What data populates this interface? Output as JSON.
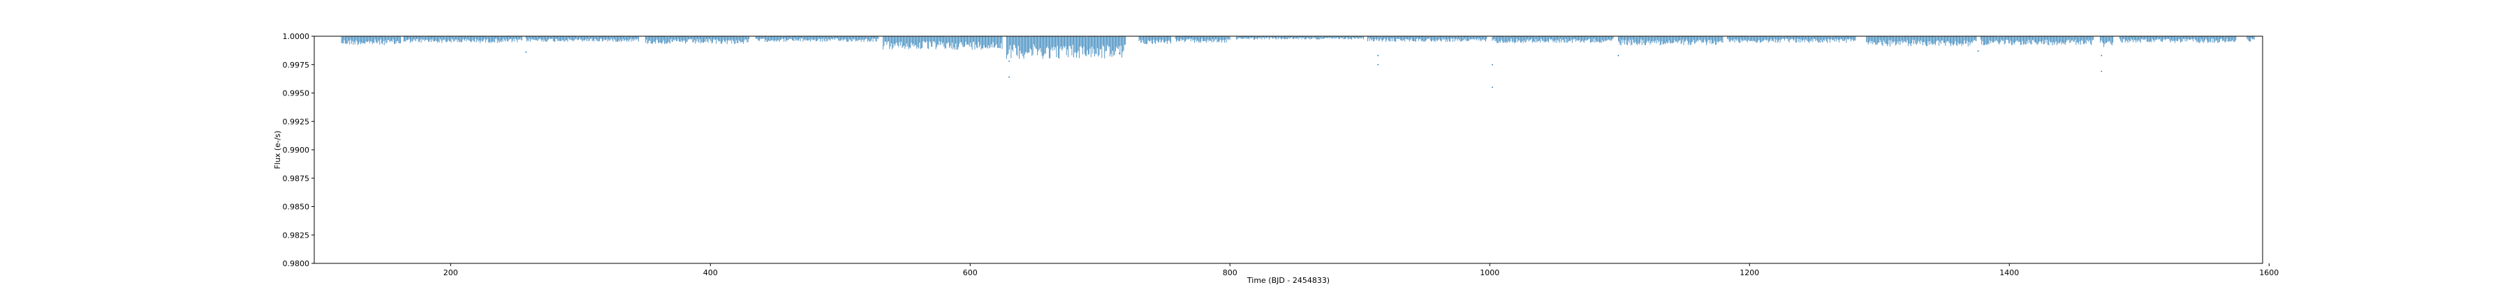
{
  "chart_data": {
    "type": "scatter",
    "title": "",
    "xlabel": "Time (BJD - 2454833)",
    "ylabel": "Flux (e-/s)",
    "xlim": [
      95,
      1595
    ],
    "ylim": [
      0.98,
      1.0
    ],
    "xticks": [
      200,
      400,
      600,
      800,
      1000,
      1200,
      1400,
      1600
    ],
    "xtick_labels": [
      "200",
      "400",
      "600",
      "800",
      "1000",
      "1200",
      "1400",
      "1600"
    ],
    "yticks": [
      0.98,
      0.9825,
      0.985,
      0.9875,
      0.99,
      0.9925,
      0.995,
      0.9975,
      1.0
    ],
    "ytick_labels": [
      "0.9800",
      "0.9825",
      "0.9850",
      "0.9875",
      "0.9900",
      "0.9925",
      "0.9950",
      "0.9975",
      "1.0000"
    ],
    "grid": false,
    "marker_color": "#1f77b4",
    "segments": [
      {
        "x_start": 116,
        "x_end": 162,
        "typical_depth": 0.0008
      },
      {
        "x_start": 164,
        "x_end": 255,
        "typical_depth": 0.0006
      },
      {
        "x_start": 258,
        "x_end": 345,
        "typical_depth": 0.0005
      },
      {
        "x_start": 350,
        "x_end": 430,
        "typical_depth": 0.0007
      },
      {
        "x_start": 435,
        "x_end": 530,
        "typical_depth": 0.0005
      },
      {
        "x_start": 533,
        "x_end": 625,
        "typical_depth": 0.0012
      },
      {
        "x_start": 628,
        "x_end": 720,
        "typical_depth": 0.002
      },
      {
        "x_start": 730,
        "x_end": 755,
        "typical_depth": 0.0007
      },
      {
        "x_start": 758,
        "x_end": 800,
        "typical_depth": 0.0006
      },
      {
        "x_start": 805,
        "x_end": 903,
        "typical_depth": 0.0003
      },
      {
        "x_start": 906,
        "x_end": 998,
        "typical_depth": 0.0005
      },
      {
        "x_start": 1002,
        "x_end": 1095,
        "typical_depth": 0.0006
      },
      {
        "x_start": 1099,
        "x_end": 1180,
        "typical_depth": 0.0008
      },
      {
        "x_start": 1183,
        "x_end": 1282,
        "typical_depth": 0.0006
      },
      {
        "x_start": 1290,
        "x_end": 1375,
        "typical_depth": 0.0009
      },
      {
        "x_start": 1378,
        "x_end": 1465,
        "typical_depth": 0.0008
      },
      {
        "x_start": 1470,
        "x_end": 1480,
        "typical_depth": 0.001
      },
      {
        "x_start": 1485,
        "x_end": 1575,
        "typical_depth": 0.0006
      },
      {
        "x_start": 1583,
        "x_end": 1589,
        "typical_depth": 0.0005
      }
    ],
    "outliers": [
      {
        "x": 258,
        "y": 0.9986
      },
      {
        "x": 630,
        "y": 0.9978
      },
      {
        "x": 630,
        "y": 0.9964
      },
      {
        "x": 715,
        "y": 0.9985
      },
      {
        "x": 914,
        "y": 0.9983
      },
      {
        "x": 914,
        "y": 0.9975
      },
      {
        "x": 1002,
        "y": 0.9975
      },
      {
        "x": 1002,
        "y": 0.9955
      },
      {
        "x": 1099,
        "y": 0.9983
      },
      {
        "x": 1471,
        "y": 0.9983
      },
      {
        "x": 1471,
        "y": 0.9969
      },
      {
        "x": 1376,
        "y": 0.9987
      }
    ]
  }
}
